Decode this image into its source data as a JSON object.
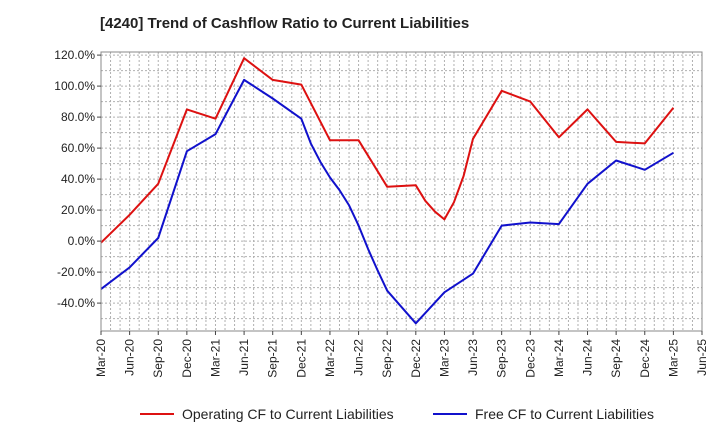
{
  "chart_data": {
    "type": "line",
    "title": "[4240]  Trend of Cashflow Ratio to Current Liabilities",
    "xlabel": "",
    "ylabel": "",
    "ylim": [
      -58,
      122
    ],
    "y_ticks": [
      "120.0%",
      "100.0%",
      "80.0%",
      "60.0%",
      "40.0%",
      "20.0%",
      "0.0%",
      "-20.0%",
      "-40.0%"
    ],
    "y_tick_values": [
      120,
      100,
      80,
      60,
      40,
      20,
      0,
      -20,
      -40
    ],
    "x_ticks": [
      "Mar-20",
      "Jun-20",
      "Sep-20",
      "Dec-20",
      "Mar-21",
      "Jun-21",
      "Sep-21",
      "Dec-21",
      "Mar-22",
      "Jun-22",
      "Sep-22",
      "Dec-22",
      "Mar-23",
      "Jun-23",
      "Sep-23",
      "Dec-23",
      "Mar-24",
      "Jun-24",
      "Sep-24",
      "Dec-24",
      "Mar-25",
      "Jun-25"
    ],
    "grid": true,
    "legend_position": "bottom",
    "series": [
      {
        "name": "Operating CF to Current Liabilities",
        "color": "#dd1111",
        "points": [
          [
            0,
            -1
          ],
          [
            1,
            17
          ],
          [
            2,
            37
          ],
          [
            3,
            85
          ],
          [
            4,
            79
          ],
          [
            5,
            118
          ],
          [
            6,
            104
          ],
          [
            7,
            101
          ],
          [
            8,
            65
          ],
          [
            9,
            65
          ],
          [
            10,
            35
          ],
          [
            11,
            36
          ],
          [
            11.33,
            26
          ],
          [
            11.67,
            19
          ],
          [
            12,
            14
          ],
          [
            12.33,
            25
          ],
          [
            12.67,
            42
          ],
          [
            13,
            66
          ],
          [
            14,
            97
          ],
          [
            15,
            90
          ],
          [
            16,
            67
          ],
          [
            17,
            85
          ],
          [
            18,
            64
          ],
          [
            19,
            63
          ],
          [
            20,
            86
          ]
        ]
      },
      {
        "name": "Free CF to Current Liabilities",
        "color": "#1111cc",
        "points": [
          [
            0,
            -31
          ],
          [
            1,
            -17
          ],
          [
            2,
            2
          ],
          [
            3,
            58
          ],
          [
            4,
            69
          ],
          [
            5,
            104
          ],
          [
            6,
            92
          ],
          [
            7,
            79
          ],
          [
            7.33,
            63
          ],
          [
            7.67,
            51
          ],
          [
            8,
            41
          ],
          [
            8.33,
            33
          ],
          [
            8.67,
            23
          ],
          [
            9,
            10
          ],
          [
            9.33,
            -5
          ],
          [
            9.67,
            -19
          ],
          [
            10,
            -32
          ],
          [
            11,
            -53
          ],
          [
            12,
            -33
          ],
          [
            13,
            -21
          ],
          [
            14,
            10
          ],
          [
            15,
            12
          ],
          [
            16,
            11
          ],
          [
            16.5,
            24
          ],
          [
            17,
            37
          ],
          [
            18,
            52
          ],
          [
            19,
            46
          ],
          [
            20,
            57
          ]
        ]
      }
    ]
  }
}
